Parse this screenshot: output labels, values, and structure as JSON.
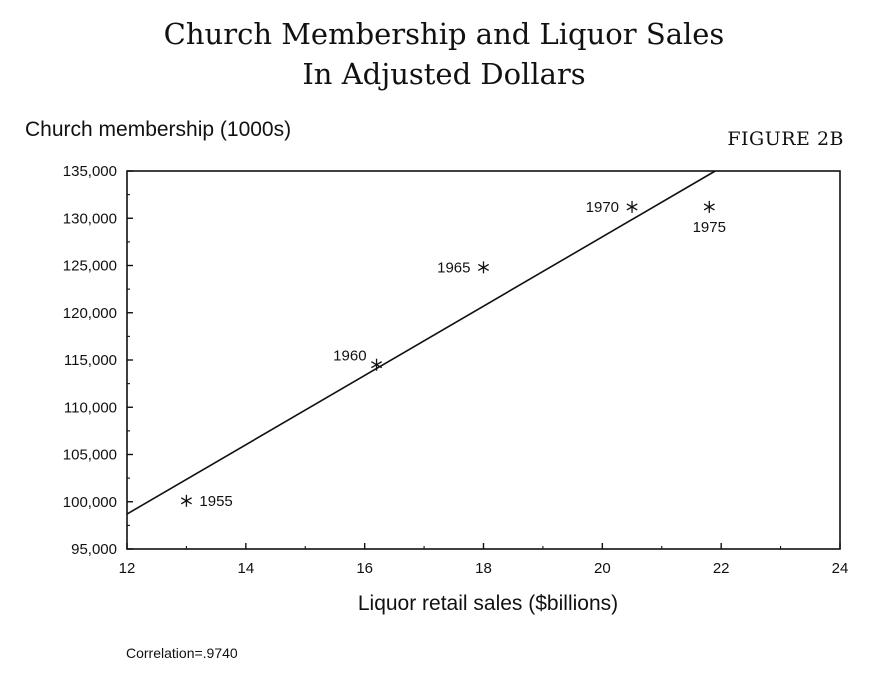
{
  "chart_data": {
    "type": "scatter",
    "title": "Church Membership and Liquor Sales",
    "subtitle": "In Adjusted Dollars",
    "figure_label": "FIGURE 2B",
    "ylabel": "Church membership (1000s)",
    "xlabel": "Liquor retail sales ($billions)",
    "annotation": "Correlation=.9740",
    "xlim": [
      12,
      24
    ],
    "ylim": [
      95000,
      135000
    ],
    "x_ticks": [
      12,
      14,
      16,
      18,
      20,
      22,
      24
    ],
    "y_ticks": [
      95000,
      100000,
      105000,
      110000,
      115000,
      120000,
      125000,
      130000,
      135000
    ],
    "y_tick_labels": [
      "95,000",
      "100,000",
      "105,000",
      "110,000",
      "115,000",
      "120,000",
      "125,000",
      "130,000",
      "135,000"
    ],
    "grid": false,
    "legend": "none",
    "marker": "asterisk",
    "points": [
      {
        "label": "1955",
        "x": 13.0,
        "y": 100100,
        "label_pos": "right"
      },
      {
        "label": "1960",
        "x": 16.2,
        "y": 114500,
        "label_pos": "upper-left"
      },
      {
        "label": "1965",
        "x": 18.0,
        "y": 124800,
        "label_pos": "left"
      },
      {
        "label": "1970",
        "x": 20.5,
        "y": 131200,
        "label_pos": "left"
      },
      {
        "label": "1975",
        "x": 21.8,
        "y": 131200,
        "label_pos": "below"
      }
    ],
    "fit_line": {
      "x": [
        12,
        21.9
      ],
      "y": [
        98700,
        135000
      ]
    },
    "colors": {
      "line": "#111111",
      "marker": "#111111",
      "text": "#111111"
    }
  }
}
